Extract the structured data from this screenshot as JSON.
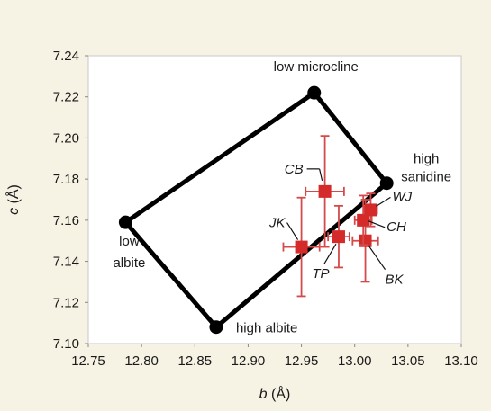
{
  "chart_data": {
    "type": "scatter",
    "xlabel_var": "b",
    "xlabel_unit": "(Å)",
    "ylabel_var": "c",
    "ylabel_unit": "(Å)",
    "xlim": [
      12.75,
      13.1
    ],
    "ylim": [
      7.1,
      7.24
    ],
    "xticks": [
      "12.75",
      "12.80",
      "12.85",
      "12.90",
      "12.95",
      "13.00",
      "13.05",
      "13.10"
    ],
    "yticks": [
      "7.10",
      "7.12",
      "7.14",
      "7.16",
      "7.18",
      "7.20",
      "7.22",
      "7.24"
    ],
    "grid": false,
    "colors": {
      "endmember": "#000000",
      "sample": "#d42a2a",
      "error": "#d44a4a"
    },
    "endmembers": [
      {
        "label": "low microcline",
        "x": 12.962,
        "y": 7.222
      },
      {
        "label": "high sanidine",
        "lines": [
          "high",
          "sanidine"
        ],
        "x": 13.03,
        "y": 7.178
      },
      {
        "label": "high albite",
        "x": 12.87,
        "y": 7.108
      },
      {
        "label": "low albite",
        "lines": [
          "low",
          "albite"
        ],
        "x": 12.785,
        "y": 7.159
      }
    ],
    "samples": [
      {
        "label": "CB",
        "x": 12.972,
        "y": 7.174,
        "xerr": [
          0.018,
          0.018
        ],
        "yerr": [
          0.027,
          0.027
        ]
      },
      {
        "label": "JK",
        "x": 12.95,
        "y": 7.147,
        "xerr": [
          0.017,
          0.017
        ],
        "yerr": [
          0.024,
          0.024
        ]
      },
      {
        "label": "TP",
        "x": 12.985,
        "y": 7.152,
        "xerr": [
          0.01,
          0.01
        ],
        "yerr": [
          0.015,
          0.015
        ]
      },
      {
        "label": "BK",
        "x": 13.01,
        "y": 7.15,
        "xerr": [
          0.012,
          0.012
        ],
        "yerr": [
          0.02,
          0.02
        ]
      },
      {
        "label": "CH",
        "x": 13.008,
        "y": 7.16,
        "xerr": [
          0.008,
          0.008
        ],
        "yerr": [
          0.012,
          0.012
        ]
      },
      {
        "label": "WJ",
        "x": 13.015,
        "y": 7.165,
        "xerr": [
          0.006,
          0.006
        ],
        "yerr": [
          0.008,
          0.008
        ]
      }
    ]
  }
}
